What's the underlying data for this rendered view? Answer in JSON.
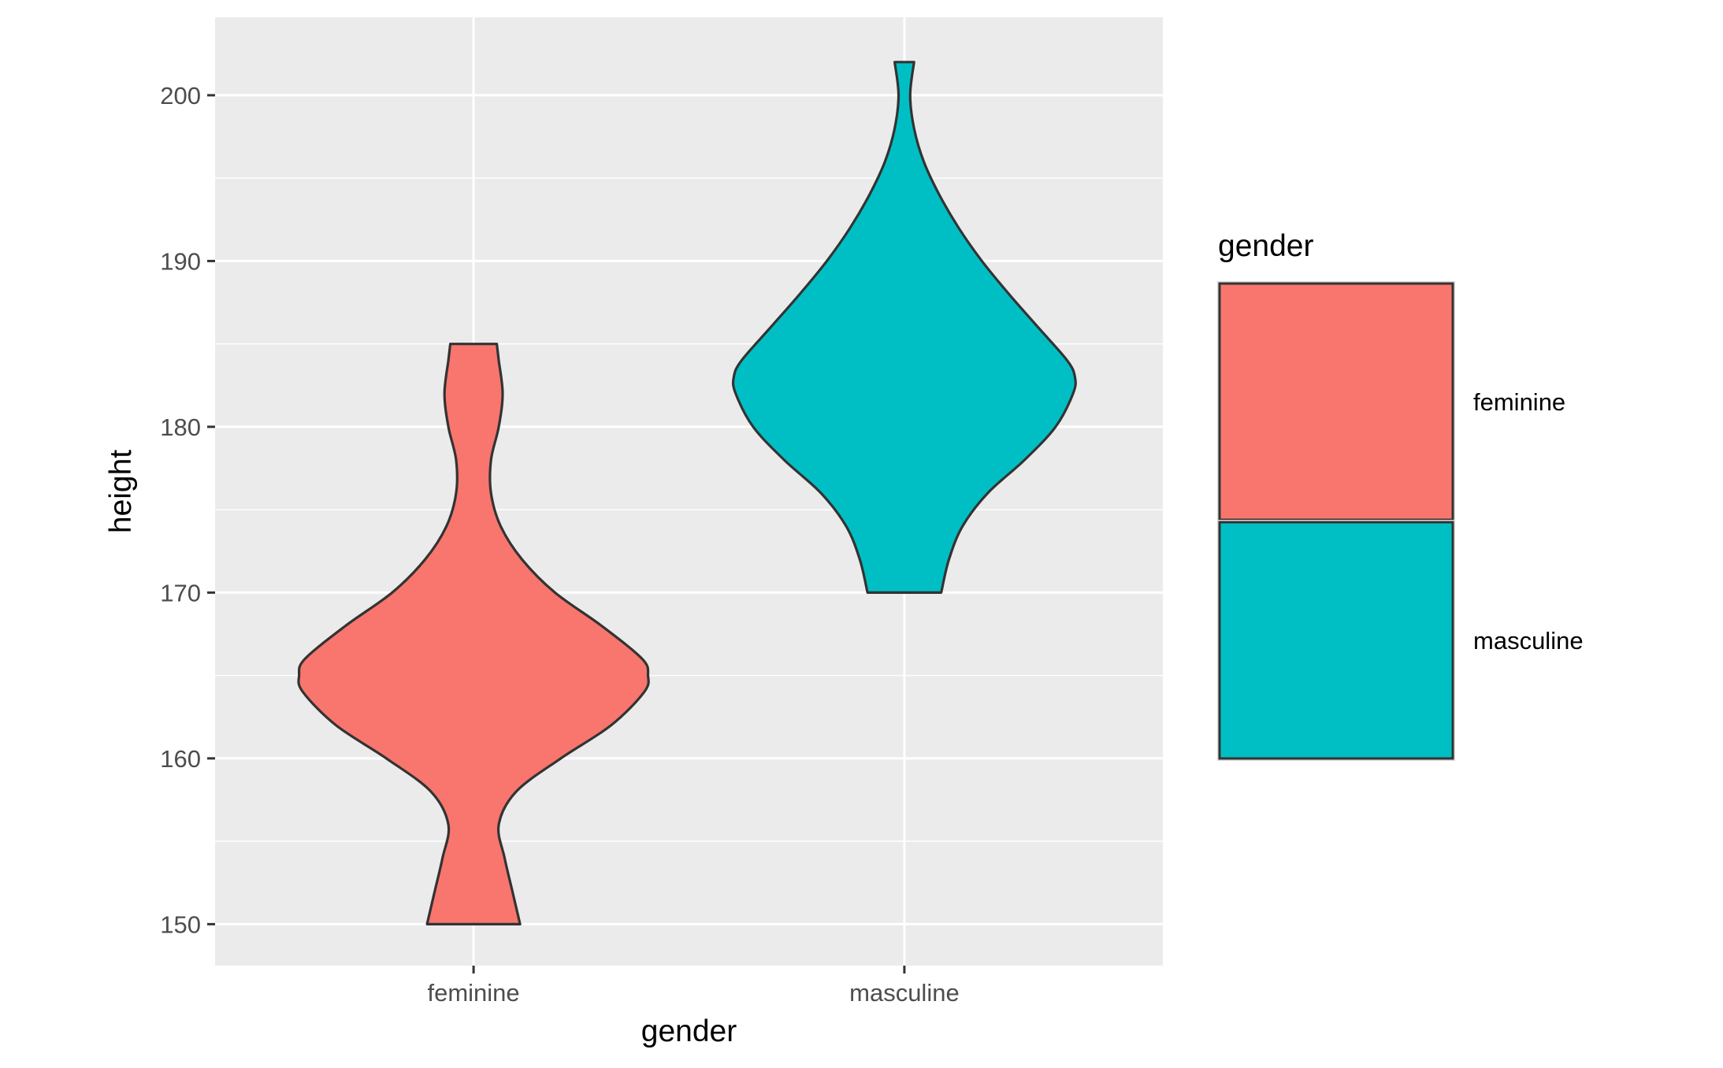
{
  "chart_data": {
    "type": "violin",
    "xlabel": "gender",
    "ylabel": "height",
    "categories": [
      "feminine",
      "masculine"
    ],
    "ylim": [
      147.5,
      204.7
    ],
    "y_ticks": [
      150,
      160,
      170,
      180,
      190,
      200
    ],
    "y_tick_labels": [
      "150",
      "160",
      "170",
      "180",
      "190",
      "200"
    ],
    "grid": true,
    "legend": {
      "title": "gender",
      "position": "right",
      "entries": [
        {
          "label": "feminine",
          "color": "#F8766D"
        },
        {
          "label": "masculine",
          "color": "#00BFC4"
        }
      ]
    },
    "series": [
      {
        "category": "feminine",
        "color": "#F8766D",
        "min": 150,
        "max": 185,
        "density_profile": [
          [
            150,
            0.24
          ],
          [
            152,
            0.2
          ],
          [
            154,
            0.16
          ],
          [
            156,
            0.13
          ],
          [
            158,
            0.22
          ],
          [
            160,
            0.45
          ],
          [
            162,
            0.71
          ],
          [
            164,
            0.88
          ],
          [
            165,
            0.9
          ],
          [
            166,
            0.87
          ],
          [
            168,
            0.66
          ],
          [
            170,
            0.42
          ],
          [
            172,
            0.25
          ],
          [
            174,
            0.14
          ],
          [
            176,
            0.09
          ],
          [
            178,
            0.09
          ],
          [
            180,
            0.13
          ],
          [
            182,
            0.15
          ],
          [
            184,
            0.13
          ],
          [
            185,
            0.12
          ]
        ]
      },
      {
        "category": "masculine",
        "color": "#00BFC4",
        "min": 170,
        "max": 202,
        "density_profile": [
          [
            170,
            0.19
          ],
          [
            172,
            0.23
          ],
          [
            174,
            0.3
          ],
          [
            176,
            0.43
          ],
          [
            178,
            0.62
          ],
          [
            180,
            0.78
          ],
          [
            182,
            0.87
          ],
          [
            183,
            0.88
          ],
          [
            184,
            0.84
          ],
          [
            186,
            0.69
          ],
          [
            188,
            0.54
          ],
          [
            190,
            0.4
          ],
          [
            192,
            0.28
          ],
          [
            194,
            0.18
          ],
          [
            196,
            0.1
          ],
          [
            198,
            0.05
          ],
          [
            200,
            0.03
          ],
          [
            202,
            0.05
          ]
        ]
      }
    ]
  },
  "colors": {
    "panel_background": "#EBEBEB",
    "grid_line": "#FFFFFF",
    "outline": "#333333",
    "axis_text": "#4D4D4D",
    "title_text": "#000000"
  }
}
